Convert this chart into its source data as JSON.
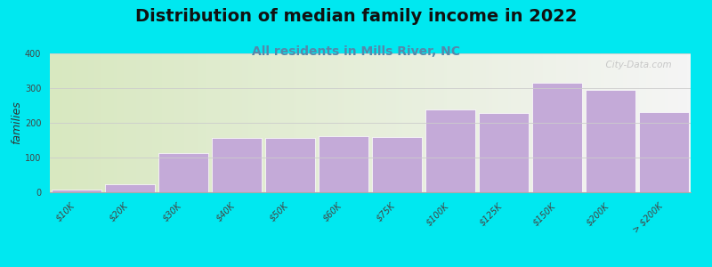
{
  "title": "Distribution of median family income in 2022",
  "subtitle": "All residents in Mills River, NC",
  "ylabel": "families",
  "categories": [
    "$10K",
    "$20K",
    "$30K",
    "$40K",
    "$50K",
    "$60K",
    "$75K",
    "$100K",
    "$125K",
    "$150K",
    "$200K",
    "> $200K"
  ],
  "values": [
    8,
    22,
    112,
    157,
    157,
    162,
    160,
    238,
    228,
    315,
    295,
    230
  ],
  "bar_color": "#c4aad8",
  "background_color": "#00e8f0",
  "plot_bg_left": "#d8e8c0",
  "plot_bg_right": "#f5f5f5",
  "ylim": [
    0,
    400
  ],
  "yticks": [
    0,
    100,
    200,
    300,
    400
  ],
  "title_fontsize": 14,
  "subtitle_fontsize": 10,
  "ylabel_fontsize": 9,
  "tick_fontsize": 7,
  "watermark": "  City-Data.com"
}
